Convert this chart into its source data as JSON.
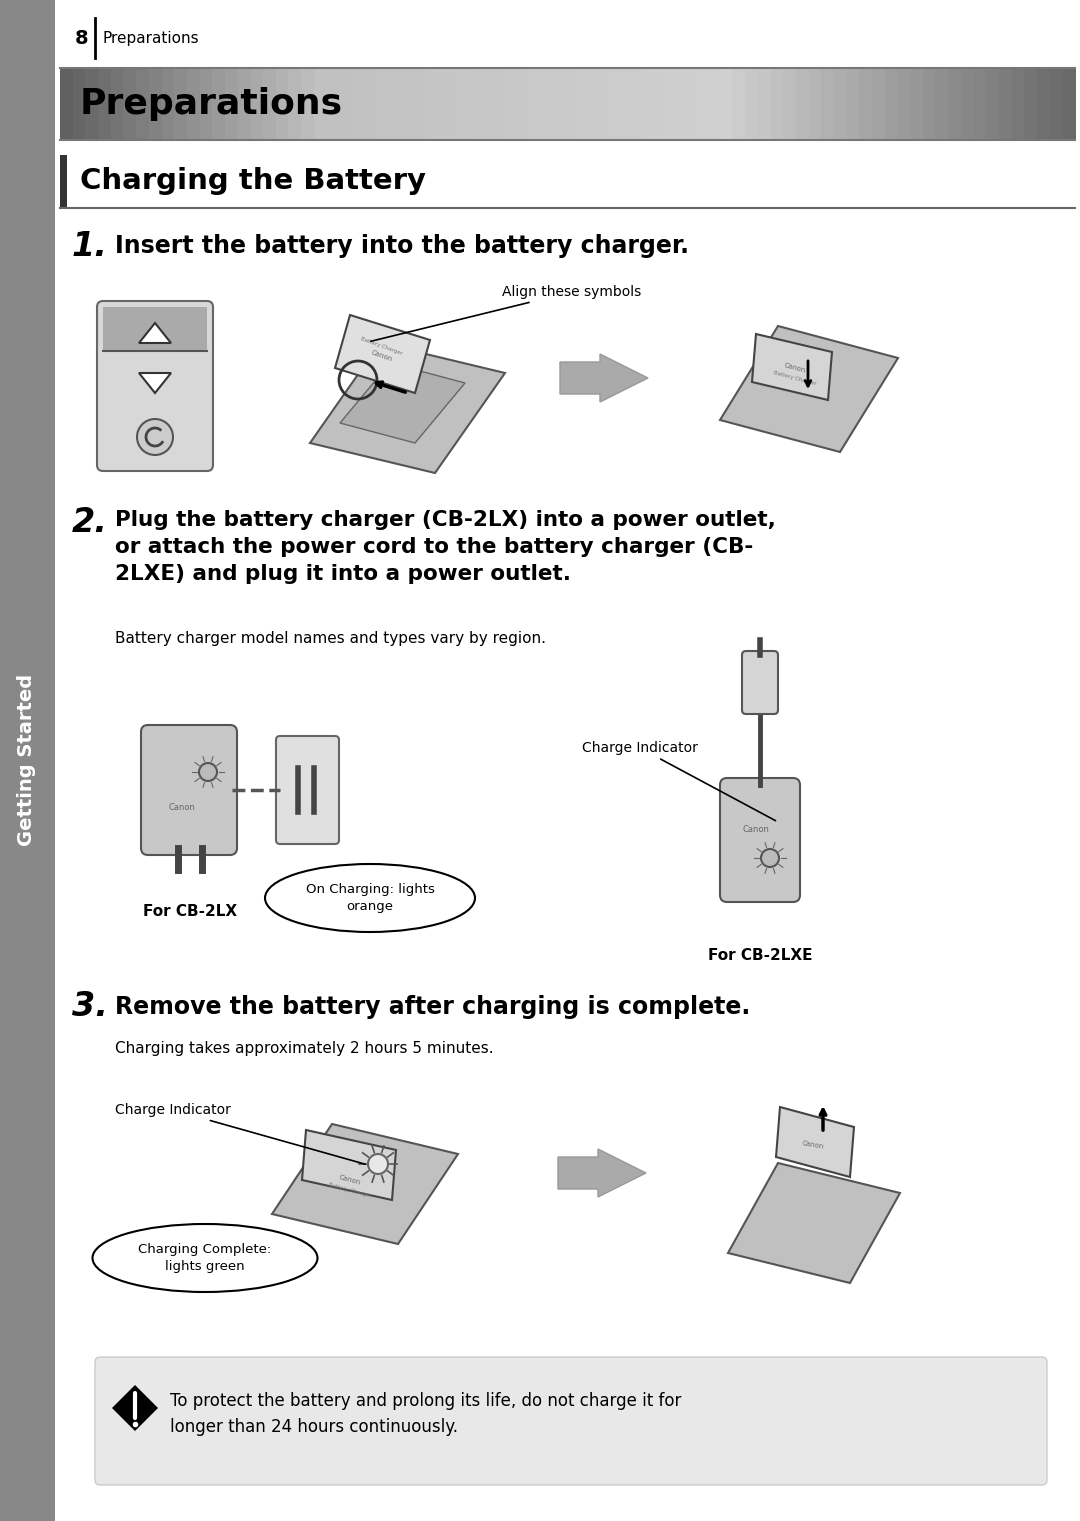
{
  "page_number": "8",
  "page_number_label": "Preparations",
  "main_title": "Preparations",
  "section_title": "Charging the Battery",
  "step1_number": "1.",
  "step1_text": "Insert the battery into the battery charger.",
  "step1_annotation": "Align these symbols",
  "step2_number": "2.",
  "step2_text_bold": "Plug the battery charger (CB-2LX) into a power outlet,\nor attach the power cord to the battery charger (CB-\n2LXE) and plug it into a power outlet.",
  "step2_subtext": "Battery charger model names and types vary by region.",
  "step2_label_left": "For CB-2LX",
  "step2_label_right": "For CB-2LXE",
  "step2_annotation1": "Charge Indicator",
  "step2_annotation2": "On Charging: lights\norange",
  "step3_number": "3.",
  "step3_text": "Remove the battery after charging is complete.",
  "step3_subtext": "Charging takes approximately 2 hours 5 minutes.",
  "step3_annotation1": "Charge Indicator",
  "step3_annotation2": "Charging Complete:\nlights green",
  "warning_text": "To protect the battery and prolong its life, do not charge it for\nlonger than 24 hours continuously.",
  "sidebar_text": "Getting Started",
  "bg_color": "#ffffff",
  "sidebar_color": "#888888",
  "warning_bg": "#e8e8e8"
}
